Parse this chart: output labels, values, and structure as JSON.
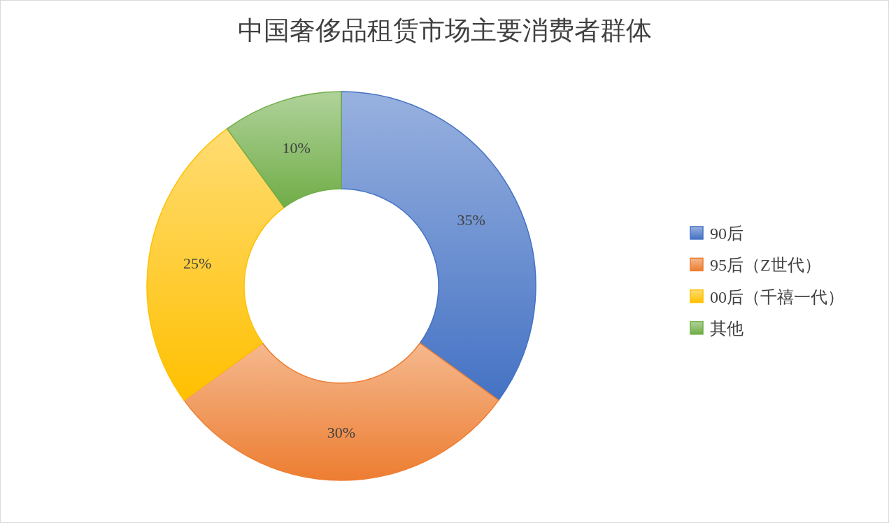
{
  "chart_data": {
    "type": "donut",
    "title": "中国奢侈品租赁市场主要消费者群体",
    "categories": [
      "90后",
      "95后（Z世代）",
      "00后（千禧一代）",
      "其他"
    ],
    "values": [
      35,
      30,
      25,
      10
    ],
    "colors": [
      "#4472c4",
      "#ed7d31",
      "#ffc000",
      "#70ad47"
    ],
    "value_labels": [
      "35%",
      "30%",
      "25%",
      "10%"
    ],
    "legend": "right"
  }
}
